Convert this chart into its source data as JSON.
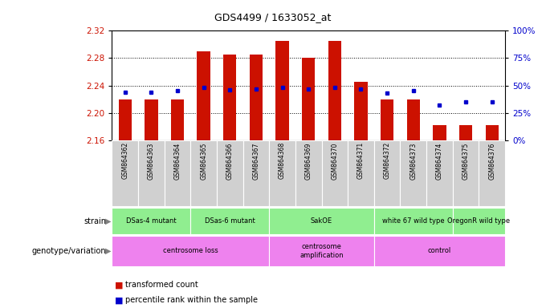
{
  "title": "GDS4499 / 1633052_at",
  "samples": [
    "GSM864362",
    "GSM864363",
    "GSM864364",
    "GSM864365",
    "GSM864366",
    "GSM864367",
    "GSM864368",
    "GSM864369",
    "GSM864370",
    "GSM864371",
    "GSM864372",
    "GSM864373",
    "GSM864374",
    "GSM864375",
    "GSM864376"
  ],
  "bar_values": [
    2.22,
    2.22,
    2.22,
    2.29,
    2.285,
    2.285,
    2.305,
    2.28,
    2.305,
    2.245,
    2.22,
    2.22,
    2.182,
    2.182,
    2.182
  ],
  "percentile_values": [
    44,
    44,
    45,
    48,
    46,
    47,
    48,
    47,
    48,
    47,
    43,
    45,
    32,
    35,
    35
  ],
  "baseline": 2.16,
  "ylim_left": [
    2.16,
    2.32
  ],
  "ylim_right": [
    0,
    100
  ],
  "yticks_left": [
    2.16,
    2.2,
    2.24,
    2.28,
    2.32
  ],
  "yticks_right": [
    0,
    25,
    50,
    75,
    100
  ],
  "bar_color": "#cc1100",
  "dot_color": "#0000cc",
  "strain_groups": [
    {
      "label": "DSas-4 mutant",
      "start": 0,
      "end": 2
    },
    {
      "label": "DSas-6 mutant",
      "start": 3,
      "end": 5
    },
    {
      "label": "SakOE",
      "start": 6,
      "end": 9
    },
    {
      "label": "white 67 wild type",
      "start": 10,
      "end": 12
    },
    {
      "label": "OregonR wild type",
      "start": 13,
      "end": 14
    }
  ],
  "genotype_groups": [
    {
      "label": "centrosome loss",
      "start": 0,
      "end": 5
    },
    {
      "label": "centrosome\namplification",
      "start": 6,
      "end": 9
    },
    {
      "label": "control",
      "start": 10,
      "end": 14
    }
  ]
}
